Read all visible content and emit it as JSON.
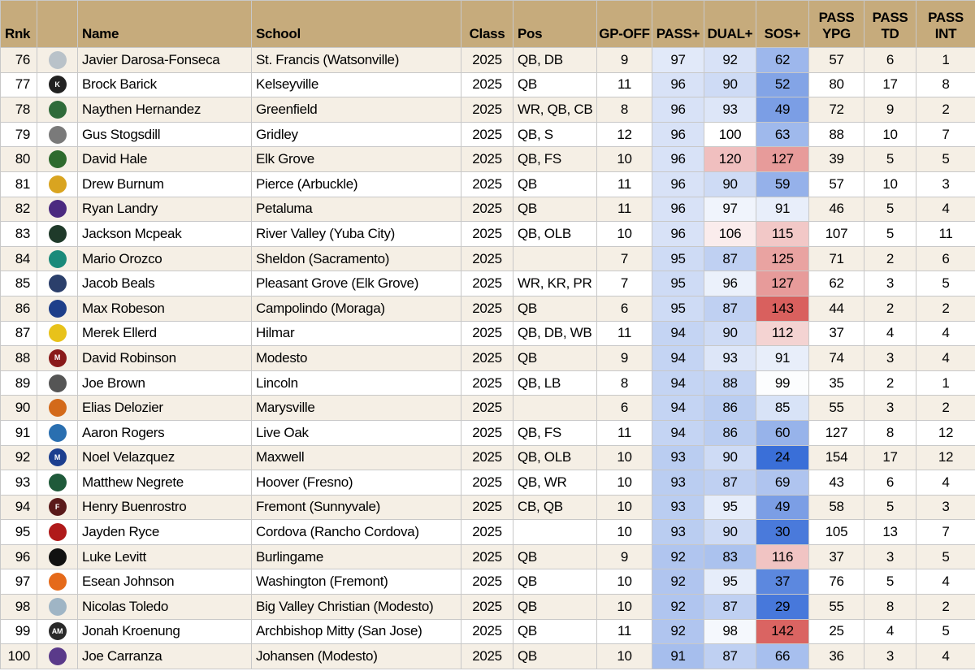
{
  "columns": [
    {
      "key": "rank",
      "label": "Rnk"
    },
    {
      "key": "logo",
      "label": ""
    },
    {
      "key": "name",
      "label": "Name"
    },
    {
      "key": "school",
      "label": "School"
    },
    {
      "key": "class",
      "label": "Class"
    },
    {
      "key": "pos",
      "label": "Pos"
    },
    {
      "key": "gp",
      "label": "GP-OFF"
    },
    {
      "key": "pass_plus",
      "label": "PASS+"
    },
    {
      "key": "dual_plus",
      "label": "DUAL+"
    },
    {
      "key": "sos_plus",
      "label": "SOS+"
    },
    {
      "key": "pass_ypg",
      "label": "PASS\nYPG"
    },
    {
      "key": "pass_td",
      "label": "PASS\nTD"
    },
    {
      "key": "pass_int",
      "label": "PASS\nINT"
    }
  ],
  "rows": [
    {
      "rank": "76",
      "logo": {
        "icon": "shark-logo-icon",
        "color": "#b9c2c9",
        "text": ""
      },
      "name": "Javier Darosa-Fonseca",
      "school": "St. Francis (Watsonville)",
      "class": "2025",
      "pos": "QB, DB",
      "gp": "9",
      "pass_plus": "97",
      "dual_plus": "92",
      "sos_plus": "62",
      "pass_ypg": "57",
      "pass_td": "6",
      "pass_int": "1"
    },
    {
      "rank": "77",
      "logo": {
        "icon": "letter-k-logo-icon",
        "color": "#222222",
        "text": "K"
      },
      "name": "Brock Barick",
      "school": "Kelseyville",
      "class": "2025",
      "pos": "QB",
      "gp": "11",
      "pass_plus": "96",
      "dual_plus": "90",
      "sos_plus": "52",
      "pass_ypg": "80",
      "pass_td": "17",
      "pass_int": "8"
    },
    {
      "rank": "78",
      "logo": {
        "icon": "mascot-logo-icon",
        "color": "#2f6b3a",
        "text": ""
      },
      "name": "Naythen Hernandez",
      "school": "Greenfield",
      "class": "2025",
      "pos": "WR, QB, CB",
      "gp": "8",
      "pass_plus": "96",
      "dual_plus": "93",
      "sos_plus": "49",
      "pass_ypg": "72",
      "pass_td": "9",
      "pass_int": "2"
    },
    {
      "rank": "79",
      "logo": {
        "icon": "bulldog-logo-icon",
        "color": "#7a7a7a",
        "text": ""
      },
      "name": "Gus Stogsdill",
      "school": "Gridley",
      "class": "2025",
      "pos": "QB, S",
      "gp": "12",
      "pass_plus": "96",
      "dual_plus": "100",
      "sos_plus": "63",
      "pass_ypg": "88",
      "pass_td": "10",
      "pass_int": "7"
    },
    {
      "rank": "80",
      "logo": {
        "icon": "elk-logo-icon",
        "color": "#2e6b2e",
        "text": ""
      },
      "name": "David Hale",
      "school": "Elk Grove",
      "class": "2025",
      "pos": "QB, FS",
      "gp": "10",
      "pass_plus": "96",
      "dual_plus": "120",
      "sos_plus": "127",
      "pass_ypg": "39",
      "pass_td": "5",
      "pass_int": "5"
    },
    {
      "rank": "81",
      "logo": {
        "icon": "bear-logo-icon",
        "color": "#d9a420",
        "text": ""
      },
      "name": "Drew Burnum",
      "school": "Pierce (Arbuckle)",
      "class": "2025",
      "pos": "QB",
      "gp": "11",
      "pass_plus": "96",
      "dual_plus": "90",
      "sos_plus": "59",
      "pass_ypg": "57",
      "pass_td": "10",
      "pass_int": "3"
    },
    {
      "rank": "82",
      "logo": {
        "icon": "trojan-logo-icon",
        "color": "#4b2a80",
        "text": ""
      },
      "name": "Ryan Landry",
      "school": "Petaluma",
      "class": "2025",
      "pos": "QB",
      "gp": "11",
      "pass_plus": "96",
      "dual_plus": "97",
      "sos_plus": "91",
      "pass_ypg": "46",
      "pass_td": "5",
      "pass_int": "4"
    },
    {
      "rank": "83",
      "logo": {
        "icon": "falcons-logo-icon",
        "color": "#1f3a2a",
        "text": ""
      },
      "name": "Jackson Mcpeak",
      "school": "River Valley (Yuba City)",
      "class": "2025",
      "pos": "QB, OLB",
      "gp": "10",
      "pass_plus": "96",
      "dual_plus": "106",
      "sos_plus": "115",
      "pass_ypg": "107",
      "pass_td": "5",
      "pass_int": "11"
    },
    {
      "rank": "84",
      "logo": {
        "icon": "huskies-logo-icon",
        "color": "#1a8a7a",
        "text": ""
      },
      "name": "Mario Orozco",
      "school": "Sheldon (Sacramento)",
      "class": "2025",
      "pos": "",
      "gp": "7",
      "pass_plus": "95",
      "dual_plus": "87",
      "sos_plus": "125",
      "pass_ypg": "71",
      "pass_td": "2",
      "pass_int": "6"
    },
    {
      "rank": "85",
      "logo": {
        "icon": "eagle-logo-icon",
        "color": "#2b3f6b",
        "text": ""
      },
      "name": "Jacob Beals",
      "school": "Pleasant Grove (Elk Grove)",
      "class": "2025",
      "pos": "WR, KR, PR",
      "gp": "7",
      "pass_plus": "95",
      "dual_plus": "96",
      "sos_plus": "127",
      "pass_ypg": "62",
      "pass_td": "3",
      "pass_int": "5"
    },
    {
      "rank": "86",
      "logo": {
        "icon": "cougar-logo-icon",
        "color": "#1e3f8a",
        "text": ""
      },
      "name": "Max Robeson",
      "school": "Campolindo (Moraga)",
      "class": "2025",
      "pos": "QB",
      "gp": "6",
      "pass_plus": "95",
      "dual_plus": "87",
      "sos_plus": "143",
      "pass_ypg": "44",
      "pass_td": "2",
      "pass_int": "2"
    },
    {
      "rank": "87",
      "logo": {
        "icon": "yellowjacket-logo-icon",
        "color": "#e8c21a",
        "text": ""
      },
      "name": "Merek Ellerd",
      "school": "Hilmar",
      "class": "2025",
      "pos": "QB, DB, WB",
      "gp": "11",
      "pass_plus": "94",
      "dual_plus": "90",
      "sos_plus": "112",
      "pass_ypg": "37",
      "pass_td": "4",
      "pass_int": "4"
    },
    {
      "rank": "88",
      "logo": {
        "icon": "letter-m-logo-icon",
        "color": "#8a1a1a",
        "text": "M"
      },
      "name": "David Robinson",
      "school": "Modesto",
      "class": "2025",
      "pos": "QB",
      "gp": "9",
      "pass_plus": "94",
      "dual_plus": "93",
      "sos_plus": "91",
      "pass_ypg": "74",
      "pass_td": "3",
      "pass_int": "4"
    },
    {
      "rank": "89",
      "logo": {
        "icon": "tiger-logo-icon",
        "color": "#555555",
        "text": ""
      },
      "name": "Joe Brown",
      "school": "Lincoln",
      "class": "2025",
      "pos": "QB, LB",
      "gp": "8",
      "pass_plus": "94",
      "dual_plus": "88",
      "sos_plus": "99",
      "pass_ypg": "35",
      "pass_td": "2",
      "pass_int": "1"
    },
    {
      "rank": "90",
      "logo": {
        "icon": "axes-logo-icon",
        "color": "#d36a1a",
        "text": ""
      },
      "name": "Elias Delozier",
      "school": "Marysville",
      "class": "2025",
      "pos": "",
      "gp": "6",
      "pass_plus": "94",
      "dual_plus": "86",
      "sos_plus": "85",
      "pass_ypg": "55",
      "pass_td": "3",
      "pass_int": "2"
    },
    {
      "rank": "91",
      "logo": {
        "icon": "lion-logo-icon",
        "color": "#2a6fb0",
        "text": ""
      },
      "name": "Aaron Rogers",
      "school": "Live Oak",
      "class": "2025",
      "pos": "QB, FS",
      "gp": "11",
      "pass_plus": "94",
      "dual_plus": "86",
      "sos_plus": "60",
      "pass_ypg": "127",
      "pass_td": "8",
      "pass_int": "12"
    },
    {
      "rank": "92",
      "logo": {
        "icon": "letter-m-logo-icon",
        "color": "#1c3f8f",
        "text": "M"
      },
      "name": "Noel Velazquez",
      "school": "Maxwell",
      "class": "2025",
      "pos": "QB, OLB",
      "gp": "10",
      "pass_plus": "93",
      "dual_plus": "90",
      "sos_plus": "24",
      "pass_ypg": "154",
      "pass_td": "17",
      "pass_int": "12"
    },
    {
      "rank": "93",
      "logo": {
        "icon": "star-logo-icon",
        "color": "#1f5a3a",
        "text": ""
      },
      "name": "Matthew Negrete",
      "school": "Hoover (Fresno)",
      "class": "2025",
      "pos": "QB, WR",
      "gp": "10",
      "pass_plus": "93",
      "dual_plus": "87",
      "sos_plus": "69",
      "pass_ypg": "43",
      "pass_td": "6",
      "pass_int": "4"
    },
    {
      "rank": "94",
      "logo": {
        "icon": "letter-f-logo-icon",
        "color": "#5a1a1a",
        "text": "F"
      },
      "name": "Henry Buenrostro",
      "school": "Fremont (Sunnyvale)",
      "class": "2025",
      "pos": "CB, QB",
      "gp": "10",
      "pass_plus": "93",
      "dual_plus": "95",
      "sos_plus": "49",
      "pass_ypg": "58",
      "pass_td": "5",
      "pass_int": "3"
    },
    {
      "rank": "95",
      "logo": {
        "icon": "lancer-logo-icon",
        "color": "#b01a1a",
        "text": ""
      },
      "name": "Jayden Ryce",
      "school": "Cordova (Rancho Cordova)",
      "class": "2025",
      "pos": "",
      "gp": "10",
      "pass_plus": "93",
      "dual_plus": "90",
      "sos_plus": "30",
      "pass_ypg": "105",
      "pass_td": "13",
      "pass_int": "7"
    },
    {
      "rank": "96",
      "logo": {
        "icon": "panther-logo-icon",
        "color": "#111111",
        "text": ""
      },
      "name": "Luke Levitt",
      "school": "Burlingame",
      "class": "2025",
      "pos": "QB",
      "gp": "9",
      "pass_plus": "92",
      "dual_plus": "83",
      "sos_plus": "116",
      "pass_ypg": "37",
      "pass_td": "3",
      "pass_int": "5"
    },
    {
      "rank": "97",
      "logo": {
        "icon": "paw-logo-icon",
        "color": "#e56a1a",
        "text": ""
      },
      "name": "Esean Johnson",
      "school": "Washington (Fremont)",
      "class": "2025",
      "pos": "QB",
      "gp": "10",
      "pass_plus": "92",
      "dual_plus": "95",
      "sos_plus": "37",
      "pass_ypg": "76",
      "pass_td": "5",
      "pass_int": "4"
    },
    {
      "rank": "98",
      "logo": {
        "icon": "crest-logo-icon",
        "color": "#9fb5c5",
        "text": ""
      },
      "name": "Nicolas Toledo",
      "school": "Big Valley Christian (Modesto)",
      "class": "2025",
      "pos": "QB",
      "gp": "10",
      "pass_plus": "92",
      "dual_plus": "87",
      "sos_plus": "29",
      "pass_ypg": "55",
      "pass_td": "8",
      "pass_int": "2"
    },
    {
      "rank": "99",
      "logo": {
        "icon": "am-monogram-logo-icon",
        "color": "#2a2a2a",
        "text": "AM"
      },
      "name": "Jonah Kroenung",
      "school": "Archbishop Mitty (San Jose)",
      "class": "2025",
      "pos": "QB",
      "gp": "11",
      "pass_plus": "92",
      "dual_plus": "98",
      "sos_plus": "142",
      "pass_ypg": "25",
      "pass_td": "4",
      "pass_int": "5"
    },
    {
      "rank": "100",
      "logo": {
        "icon": "viking-logo-icon",
        "color": "#5a3a8a",
        "text": ""
      },
      "name": "Joe Carranza",
      "school": "Johansen (Modesto)",
      "class": "2025",
      "pos": "QB",
      "gp": "10",
      "pass_plus": "91",
      "dual_plus": "87",
      "sos_plus": "66",
      "pass_ypg": "36",
      "pass_td": "3",
      "pass_int": "4"
    }
  ]
}
